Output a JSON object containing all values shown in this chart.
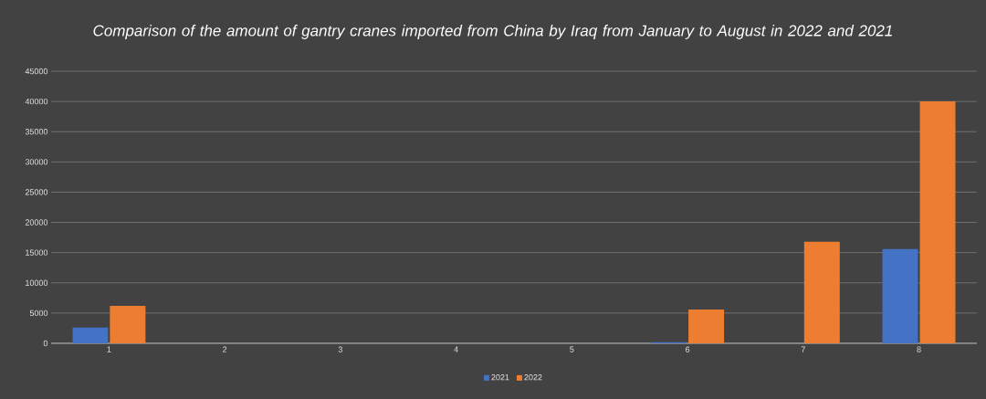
{
  "chart_data": {
    "type": "bar",
    "title": "Comparison of the amount of gantry cranes imported from China by Iraq from January to August in 2022 and 2021",
    "categories": [
      "1",
      "2",
      "3",
      "4",
      "5",
      "6",
      "7",
      "8"
    ],
    "series": [
      {
        "name": "2021",
        "color": "#4472c4",
        "values": [
          2600,
          0,
          0,
          0,
          0,
          200,
          0,
          15600
        ]
      },
      {
        "name": "2022",
        "color": "#ed7d31",
        "values": [
          6200,
          0,
          0,
          0,
          0,
          5600,
          16800,
          40000
        ]
      }
    ],
    "ylim": [
      0,
      45000
    ],
    "yticks": [
      0,
      5000,
      10000,
      15000,
      20000,
      25000,
      30000,
      35000,
      40000,
      45000
    ],
    "grid": "y",
    "legend": "bottom"
  }
}
